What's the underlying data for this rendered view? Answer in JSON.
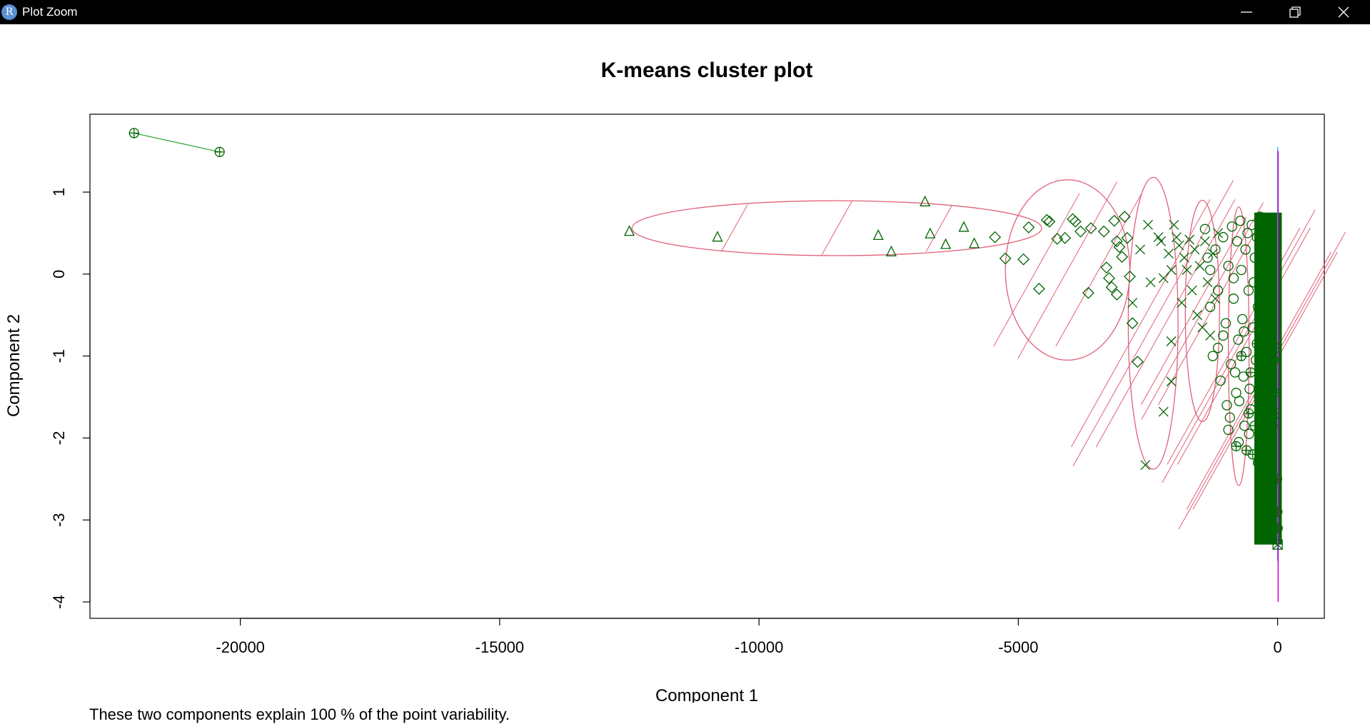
{
  "window": {
    "title": "Plot Zoom",
    "app_icon_letter": "R",
    "icons": [
      "r-logo-icon",
      "minimize-icon",
      "maximize-icon",
      "close-icon"
    ]
  },
  "footer_text": "These two components explain 100 % of the point variability.",
  "chart_data": {
    "type": "scatter",
    "title": "K-means cluster plot",
    "xlabel": "Component 1",
    "ylabel": "Component 2",
    "xlim": [
      -22900,
      900
    ],
    "ylim": [
      -4.2,
      1.95
    ],
    "xticks": [
      -20000,
      -15000,
      -10000,
      -5000,
      0
    ],
    "yticks": [
      -4,
      -3,
      -2,
      -1,
      0,
      1
    ],
    "grid": false,
    "colors": {
      "points": "#006400",
      "ellipse": "#e0607a",
      "line": "#2ca02c",
      "thin_cyan": "#33aaff",
      "thin_magenta": "#cc00cc"
    },
    "clusters": [
      {
        "shape": "circle-plus",
        "points": [
          [
            -22050,
            1.72
          ],
          [
            -20400,
            1.49
          ]
        ]
      },
      {
        "shape": "triangle",
        "points": [
          [
            -12500,
            0.52
          ],
          [
            -10800,
            0.45
          ],
          [
            -7700,
            0.47
          ],
          [
            -7450,
            0.27
          ],
          [
            -6800,
            0.88
          ],
          [
            -6700,
            0.49
          ],
          [
            -6400,
            0.36
          ],
          [
            -6050,
            0.57
          ],
          [
            -5850,
            0.37
          ]
        ]
      },
      {
        "shape": "diamond",
        "points": [
          [
            -5450,
            0.45
          ],
          [
            -5250,
            0.19
          ],
          [
            -4900,
            0.18
          ],
          [
            -4800,
            0.57
          ],
          [
            -4600,
            -0.18
          ],
          [
            -4450,
            0.66
          ],
          [
            -4400,
            0.64
          ],
          [
            -4250,
            0.43
          ],
          [
            -4100,
            0.44
          ],
          [
            -3950,
            0.67
          ],
          [
            -3900,
            0.64
          ],
          [
            -3800,
            0.52
          ],
          [
            -3600,
            0.56
          ],
          [
            -3650,
            -0.23
          ],
          [
            -3350,
            0.52
          ],
          [
            -3300,
            0.08
          ],
          [
            -3250,
            -0.05
          ],
          [
            -3200,
            -0.16
          ],
          [
            -3150,
            0.65
          ],
          [
            -3100,
            0.4
          ],
          [
            -3050,
            0.33
          ],
          [
            -3000,
            0.21
          ],
          [
            -2950,
            0.7
          ],
          [
            -2900,
            0.44
          ],
          [
            -2850,
            -0.03
          ],
          [
            -3100,
            -0.25
          ],
          [
            -2800,
            -0.6
          ],
          [
            -2700,
            -1.07
          ]
        ]
      },
      {
        "shape": "x",
        "points": [
          [
            -2650,
            0.3
          ],
          [
            -2500,
            0.6
          ],
          [
            -2450,
            -0.1
          ],
          [
            -2300,
            0.45
          ],
          [
            -2250,
            0.4
          ],
          [
            -2200,
            -0.05
          ],
          [
            -2100,
            0.25
          ],
          [
            -2050,
            0.05
          ],
          [
            -2000,
            0.6
          ],
          [
            -1950,
            0.45
          ],
          [
            -1900,
            0.35
          ],
          [
            -1850,
            -0.35
          ],
          [
            -1800,
            0.2
          ],
          [
            -1750,
            0.05
          ],
          [
            -1700,
            0.42
          ],
          [
            -1650,
            -0.2
          ],
          [
            -1600,
            0.3
          ],
          [
            -1550,
            -0.5
          ],
          [
            -1500,
            0.1
          ],
          [
            -1450,
            -0.65
          ],
          [
            -1400,
            0.4
          ],
          [
            -1350,
            -0.1
          ],
          [
            -1300,
            -0.75
          ],
          [
            -1250,
            0.25
          ],
          [
            -1200,
            -0.3
          ],
          [
            -1150,
            0.5
          ],
          [
            -2050,
            -0.82
          ],
          [
            -2050,
            -1.31
          ],
          [
            -2200,
            -1.68
          ],
          [
            -2550,
            -2.33
          ],
          [
            -2800,
            -0.35
          ]
        ]
      },
      {
        "shape": "circle",
        "points": [
          [
            -1400,
            0.55
          ],
          [
            -1350,
            0.2
          ],
          [
            -1300,
            -0.4
          ],
          [
            -1250,
            -1.0
          ],
          [
            -1200,
            0.3
          ],
          [
            -1150,
            -0.9
          ],
          [
            -1100,
            -1.3
          ],
          [
            -1050,
            0.45
          ],
          [
            -1000,
            -0.6
          ],
          [
            -980,
            -1.6
          ],
          [
            -950,
            0.1
          ],
          [
            -920,
            -1.75
          ],
          [
            -900,
            -1.1
          ],
          [
            -880,
            0.58
          ],
          [
            -850,
            -0.3
          ],
          [
            -820,
            -1.2
          ],
          [
            -800,
            -1.45
          ],
          [
            -780,
            0.4
          ],
          [
            -760,
            -0.8
          ],
          [
            -740,
            -1.55
          ],
          [
            -720,
            0.65
          ],
          [
            -700,
            0.05
          ],
          [
            -680,
            -0.55
          ],
          [
            -660,
            -1.25
          ],
          [
            -640,
            -1.85
          ],
          [
            -620,
            0.3
          ],
          [
            -600,
            -0.95
          ],
          [
            -580,
            0.5
          ],
          [
            -560,
            -0.2
          ],
          [
            -540,
            -1.4
          ],
          [
            -520,
            -1.65
          ],
          [
            -500,
            0.6
          ],
          [
            -480,
            -0.65
          ],
          [
            -460,
            -0.1
          ],
          [
            -440,
            0.2
          ],
          [
            -420,
            -1.05
          ],
          [
            -400,
            0.45
          ],
          [
            -380,
            -0.4
          ],
          [
            -360,
            -1.5
          ],
          [
            -340,
            0.7
          ],
          [
            -320,
            -0.85
          ],
          [
            -300,
            0.15
          ],
          [
            -1300,
            0.05
          ],
          [
            -1150,
            -0.2
          ],
          [
            -1050,
            -0.75
          ],
          [
            -950,
            -1.9
          ],
          [
            -850,
            -0.05
          ],
          [
            -750,
            -2.05
          ],
          [
            -650,
            -0.7
          ],
          [
            -550,
            -1.95
          ]
        ]
      },
      {
        "shape": "circle-plus",
        "points": [
          [
            -800,
            -2.1
          ],
          [
            -700,
            -1.0
          ],
          [
            -600,
            -2.15
          ],
          [
            -560,
            -1.7
          ],
          [
            -520,
            -1.2
          ],
          [
            -480,
            -2.2
          ],
          [
            -440,
            -1.85
          ],
          [
            -400,
            -0.85
          ],
          [
            -380,
            -2.3
          ],
          [
            -360,
            -1.4
          ],
          [
            -340,
            -1.9
          ],
          [
            -320,
            -1.15
          ],
          [
            -300,
            -1.6
          ],
          [
            -280,
            -1.95
          ],
          [
            -260,
            -2.1
          ],
          [
            -240,
            -0.95
          ],
          [
            -220,
            -1.35
          ],
          [
            -200,
            -1.75
          ],
          [
            -180,
            -2.05
          ],
          [
            -160,
            -1.25
          ],
          [
            -140,
            -1.55
          ],
          [
            -120,
            -0.75
          ],
          [
            -100,
            -1.85
          ],
          [
            -80,
            -1.05
          ],
          [
            -60,
            -1.45
          ],
          [
            -40,
            -0.9
          ],
          [
            -20,
            -1.7
          ],
          [
            -10,
            -2.5
          ],
          [
            -5,
            -2.9
          ],
          [
            0,
            -3.1
          ]
        ]
      },
      {
        "shape": "square-x",
        "points": [
          [
            0,
            -3.3
          ]
        ]
      }
    ],
    "ellipses": [
      {
        "cx": -8500,
        "cy": 0.56,
        "rx": 3950,
        "ry": 0.335,
        "rot": 0
      },
      {
        "cx": -4050,
        "cy": 0.05,
        "rx": 1200,
        "ry": 1.1,
        "rot": 0
      },
      {
        "cx": -2400,
        "cy": -0.6,
        "rx": 480,
        "ry": 1.78,
        "rot": 0
      },
      {
        "cx": -1450,
        "cy": -0.45,
        "rx": 330,
        "ry": 1.35,
        "rot": 0
      },
      {
        "cx": -750,
        "cy": -0.88,
        "rx": 200,
        "ry": 1.7,
        "rot": 0
      },
      {
        "cx": -300,
        "cy": -1.3,
        "rx": 120,
        "ry": 1.85,
        "rot": 0
      }
    ],
    "dense_band": {
      "xmin": -450,
      "xmax": 80,
      "ymin": -3.3,
      "ymax": 0.75
    },
    "thin_lines": [
      {
        "x": 0,
        "ymin": -3.5,
        "ymax": 1.55,
        "color": "thin_cyan"
      },
      {
        "x": 10,
        "ymin": -4.0,
        "ymax": 1.5,
        "color": "thin_magenta"
      }
    ],
    "connector": [
      [
        -22050,
        1.72
      ],
      [
        -20400,
        1.49
      ]
    ]
  }
}
